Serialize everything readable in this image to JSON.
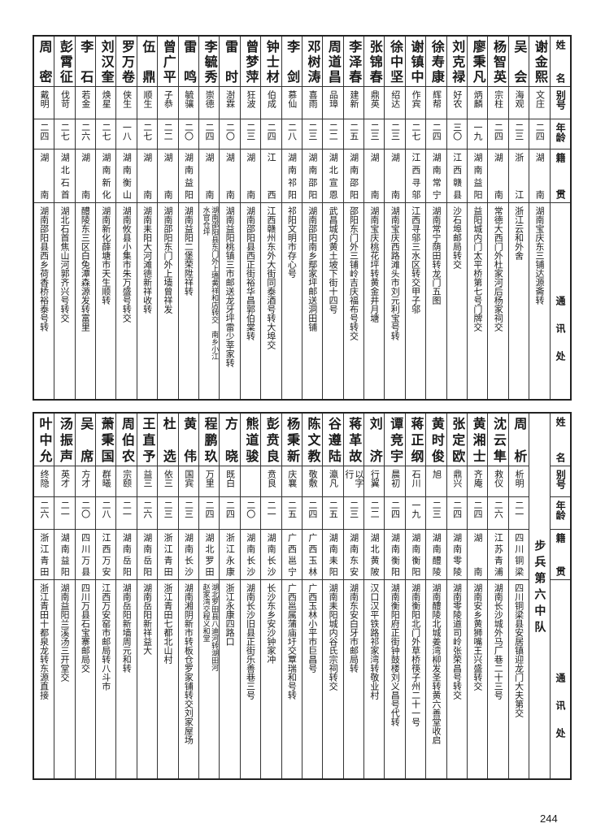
{
  "headers": {
    "name": "姓名",
    "alias": "别号",
    "age": "年龄",
    "native": "籍贯",
    "address": "通讯处"
  },
  "top": {
    "rows": [
      {
        "name": "谢金熙",
        "alias": "文庄",
        "age": "二四",
        "native": "湖南",
        "address": [
          "湖南宝庆东三铺达源斋转"
        ]
      },
      {
        "name": "吴会",
        "alias": "海观",
        "age": "二三",
        "native": "浙江",
        "address": [
          "浙江云和外舍"
        ]
      },
      {
        "name": "杨智英",
        "alias": "宗柱",
        "age": "二四",
        "native": "湖南",
        "address": [
          "常德大西门外杜家河后杨家祠交"
        ]
      },
      {
        "name": "廖秉凡",
        "alias": "炳麟",
        "age": "一九",
        "native": "湖南益阳",
        "address": [
          "益阳城内门太平桥第七号门牌交"
        ]
      },
      {
        "name": "刘克禄",
        "alias": "好农",
        "age": "三〇",
        "native": "江西赣县",
        "address": [
          "沙石埠邮局转交"
        ]
      },
      {
        "name": "徐寿康",
        "alias": "辉帮",
        "age": "二四",
        "native": "湖南常宁",
        "address": [
          "湖南常宁荫田转龙门五图"
        ]
      },
      {
        "name": "谢镇中",
        "alias": "作宾",
        "age": "二七",
        "native": "江西寻邬",
        "address": [
          "江西寻邬三水区转交甲子邬"
        ]
      },
      {
        "name": "徐中坚",
        "alias": "绍达",
        "age": "二三",
        "native": "湖南",
        "address": [
          "湖南宝庆西路滩头市刘元利宝号转"
        ]
      },
      {
        "name": "张锦春",
        "alias": "鼎英",
        "age": "二三",
        "native": "湖南",
        "address": [
          "湖南宝庆桃花坪转黄金井月塘"
        ]
      },
      {
        "name": "李泽春",
        "alias": "建新",
        "age": "二五",
        "native": "湖南邵阳",
        "address": [
          "邵阳东门外三铺岭吉庆福布号转交"
        ]
      },
      {
        "name": "周道昌",
        "alias": "品璋",
        "age": "二二",
        "native": "湖北宣恩",
        "address": [
          "武昌城内黄土坡下街十四号"
        ]
      },
      {
        "name": "邓树涛",
        "alias": "喜雨",
        "age": "二三",
        "native": "湖南邵阳",
        "address": [
          "湖南邵阳南乡鄢家坪邮送洞田铺"
        ]
      },
      {
        "name": "李剑",
        "alias": "慕仙",
        "age": "二八",
        "native": "湖南祁阳",
        "address": [
          "祁阳文明市存心号"
        ]
      },
      {
        "name": "钟士材",
        "alias": "伯成",
        "age": "二四",
        "native": "江西",
        "address": [
          "江西赣州东外大街同泰酒号转大埠交"
        ]
      },
      {
        "name": "曾梦萍",
        "alias": "狂波",
        "age": "二三",
        "native": "湖南",
        "address": [
          "湖南邵阳县西正街裕华昌郭伯棠转"
        ]
      },
      {
        "name": "雷时",
        "alias": "澍霖",
        "age": "二〇",
        "native": "湖南",
        "address": [
          "湖南益阳桃镇三市邮送龙牙坪雷少莘家转"
        ]
      },
      {
        "name": "李毓秀",
        "alias": "崇德",
        "age": "二四",
        "native": "湖南",
        "address": [
          "湖南邵阳县东门外上墙黄祥和店转交　南乡小江",
          "水官仓坪"
        ]
      },
      {
        "name": "雷鸣",
        "alias": "毓骧",
        "age": "二〇",
        "native": "湖南益阳",
        "address": [
          "湖南益阳二堡荣陞祥转"
        ]
      },
      {
        "name": "曾广平",
        "alias": "子恭",
        "age": "二二",
        "native": "湖南",
        "address": [
          "湖南邵阳东门外上墙曾祥发"
        ]
      },
      {
        "name": "伍鼎",
        "alias": "顺生",
        "age": "二七",
        "native": "湖南",
        "address": [
          "湖南耒阳大河滩德新祥收转"
        ]
      },
      {
        "name": "罗万卷",
        "alias": "侠生",
        "age": "一八",
        "native": "湖南衡山",
        "address": [
          "湖南攸县小集市朱万盛号转交"
        ]
      },
      {
        "name": "刘汉奎",
        "alias": "焕星",
        "age": "二七",
        "native": "湖南新化",
        "address": [
          "湖南新化薛塘市天生顺转"
        ]
      },
      {
        "name": "李石",
        "alias": "若金",
        "age": "二六",
        "native": "湖南",
        "address": [
          "醴陵东三区白兔潭森源发转富里"
        ]
      },
      {
        "name": "彭霄征",
        "alias": "伐苛",
        "age": "二七",
        "native": "湖北石首",
        "address": [
          "湖北石首焦山河郭齐兴号转交"
        ]
      },
      {
        "name": "周密",
        "alias": "戴明",
        "age": "二四",
        "native": "湖南",
        "address": [
          "湖南邵阳县西乡荷香桥裕泰号转"
        ]
      }
    ]
  },
  "bottom": {
    "section_label": "步兵第六中队",
    "rows": [
      {
        "name": "周析",
        "alias": "析明",
        "age": "二一",
        "native": "四川铜梁",
        "address": [
          "四川铜梁县安居镇迎龙门大夫第交"
        ]
      },
      {
        "name": "沈云隼",
        "alias": "救仪",
        "age": "二六",
        "native": "江苏青浦",
        "address": [
          "湖南长沙城外马厂巷二十三号"
        ]
      },
      {
        "name": "黄湘士",
        "alias": "齐庵",
        "age": "二四",
        "native": "湖南",
        "address": [
          "湖南安乡黄狮嘴王兴盛转交"
        ]
      },
      {
        "name": "张定欧",
        "alias": "鼎兴",
        "age": "二四",
        "native": "湖南零陵",
        "address": [
          "湖南零陵道司岭张荣昌号转交"
        ]
      },
      {
        "name": "黄时俊",
        "alias": "旭",
        "age": "二三",
        "native": "湖南醴陵",
        "address": [
          "湖南醴陵北城姜湾柳发圣转黄六善堂收启"
        ]
      },
      {
        "name": "蒋正纲",
        "alias": "石川",
        "age": "一九",
        "native": "湖南衡阳",
        "address": [
          "湖南衡阳北门外草桥筷子州二十一号"
        ]
      },
      {
        "name": "谭竞宇",
        "alias": "晨初",
        "age": "二四",
        "native": "湖南衡阳",
        "address": [
          "湖南衡阳府正街钟鼓楼刘义昌号代转"
        ]
      },
      {
        "name": "刘济",
        "alias": "行翼",
        "age": "二二",
        "native": "湖北黄陂",
        "address": [
          "汉口汉平铁路祁家湾转敬业村"
        ]
      },
      {
        "name": "蒋革故",
        "alias": "以字行",
        "age": "二三",
        "native": "湖南东安",
        "address": [
          "湖南东安白牙市邮局转"
        ]
      },
      {
        "name": "谷遵陆",
        "alias": "瀛凡",
        "age": "二五",
        "native": "湖南耒阳",
        "address": [
          "湖南耒阳城内谷氏宗祠转交"
        ]
      },
      {
        "name": "陈文教",
        "alias": "敬敷",
        "age": "二四",
        "native": "广西玉林",
        "address": [
          "广西玉林小平市巨昌号"
        ]
      },
      {
        "name": "杨秉新",
        "alias": "庆襄",
        "age": "二五",
        "native": "广西邕宁",
        "address": [
          "广西邕属蒲庙圩交覃瑞和号转"
        ]
      },
      {
        "name": "彭贲良",
        "alias": "贲良",
        "age": "二一",
        "native": "湖南长沙",
        "address": [
          "长沙东乡安沙钟家冲"
        ]
      },
      {
        "name": "熊道骏",
        "alias": "",
        "age": "二〇",
        "native": "湖南长沙",
        "address": [
          "湖南长沙旧县正街乐善巷三号"
        ]
      },
      {
        "name": "方晓",
        "alias": "既白",
        "age": "二四",
        "native": "浙江永康",
        "address": [
          "浙江永康四路口"
        ]
      },
      {
        "name": "程鹏玖",
        "alias": "万里",
        "age": "二四",
        "native": "湖北罗田",
        "address": [
          "湖北罗田县八迪河转湖田河",
          "赵家湾交程义和堂"
        ]
      },
      {
        "name": "黄伟",
        "alias": "国宾",
        "age": "二三",
        "native": "湖南长沙",
        "address": [
          "湖南湘阴新市转板仓罗家铺转交刘家屋场"
        ]
      },
      {
        "name": "杜选",
        "alias": "依三",
        "age": "二三",
        "native": "浙江青田",
        "address": [
          "浙江青田七都北山村"
        ]
      },
      {
        "name": "王直予",
        "alias": "益三",
        "age": "二六",
        "native": "湖南岳阳",
        "address": [
          "湖南岳阳新祥益大"
        ]
      },
      {
        "name": "周伯农",
        "alias": "宗颐",
        "age": "二一",
        "native": "湖南岳阳",
        "address": [
          "湖南岳阳新墙周元和转"
        ]
      },
      {
        "name": "萧秉国",
        "alias": "群曦",
        "age": "二八",
        "native": "江西万安",
        "address": [
          "江西万安窑市邮局转八斗市"
        ]
      },
      {
        "name": "吴席",
        "alias": "方才",
        "age": "二〇",
        "native": "四川万县",
        "address": [
          "四川万县石宝寨邮局交"
        ]
      },
      {
        "name": "汤振声",
        "alias": "英才",
        "age": "二一",
        "native": "湖南益阳",
        "address": [
          "湖南益阳兰溪汤三开堂交"
        ]
      },
      {
        "name": "叶中允",
        "alias": "终隐",
        "age": "二六",
        "native": "浙江青田",
        "address": [
          "浙江青田十都泉龙转东源直接"
        ]
      }
    ]
  },
  "page_number": "244"
}
